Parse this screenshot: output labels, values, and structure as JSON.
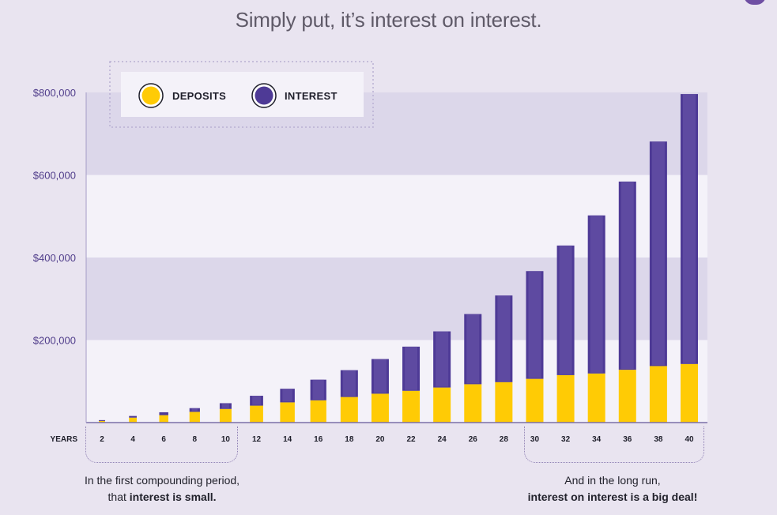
{
  "title": "Simply put, it’s interest on interest.",
  "colors": {
    "background": "#e9e4f0",
    "band_dark": "#dcd7ea",
    "band_light": "#f4f2f9",
    "deposits": "#ffcb05",
    "interest": "#4e3a96",
    "interest_highlight": "#6c58ab",
    "axis": "#7a6fa8"
  },
  "legend": {
    "deposits_label": "DEPOSITS",
    "interest_label": "INTEREST",
    "deposits_icon": "yellow-circle-icon",
    "interest_icon": "purple-circle-icon"
  },
  "annotations": {
    "left_line1": "In the first compounding period,",
    "left_line2_prefix": "that ",
    "left_line2_bold": "interest is small.",
    "right_line1": "And in the long run,",
    "right_line2_bold": "interest on interest is a big deal!"
  },
  "chart_data": {
    "type": "bar",
    "stacked": true,
    "title": "Simply put, it’s interest on interest.",
    "xlabel": "YEARS",
    "ylabel": "",
    "ylim": [
      0,
      800000
    ],
    "yticks": [
      200000,
      400000,
      600000,
      800000
    ],
    "ytick_labels": [
      "$200,000",
      "$400,000",
      "$600,000",
      "$800,000"
    ],
    "categories": [
      "2",
      "4",
      "6",
      "8",
      "10",
      "12",
      "14",
      "16",
      "18",
      "20",
      "22",
      "24",
      "26",
      "28",
      "30",
      "32",
      "34",
      "36",
      "38",
      "40"
    ],
    "series": [
      {
        "name": "DEPOSITS",
        "color": "#ffcb05",
        "values": [
          4000,
          12000,
          18000,
          26000,
          33000,
          41000,
          49000,
          54000,
          62000,
          70000,
          77000,
          85000,
          93000,
          98000,
          106000,
          115000,
          119000,
          128000,
          137000,
          142000
        ]
      },
      {
        "name": "INTEREST",
        "color": "#4e3a96",
        "values": [
          2000,
          4000,
          7000,
          9000,
          14000,
          24000,
          33000,
          50000,
          65000,
          84000,
          107000,
          136000,
          170000,
          210000,
          261000,
          314000,
          383000,
          456000,
          544000,
          654000
        ]
      }
    ],
    "grid": "alternating horizontal bands",
    "legend_position": "top-left"
  }
}
